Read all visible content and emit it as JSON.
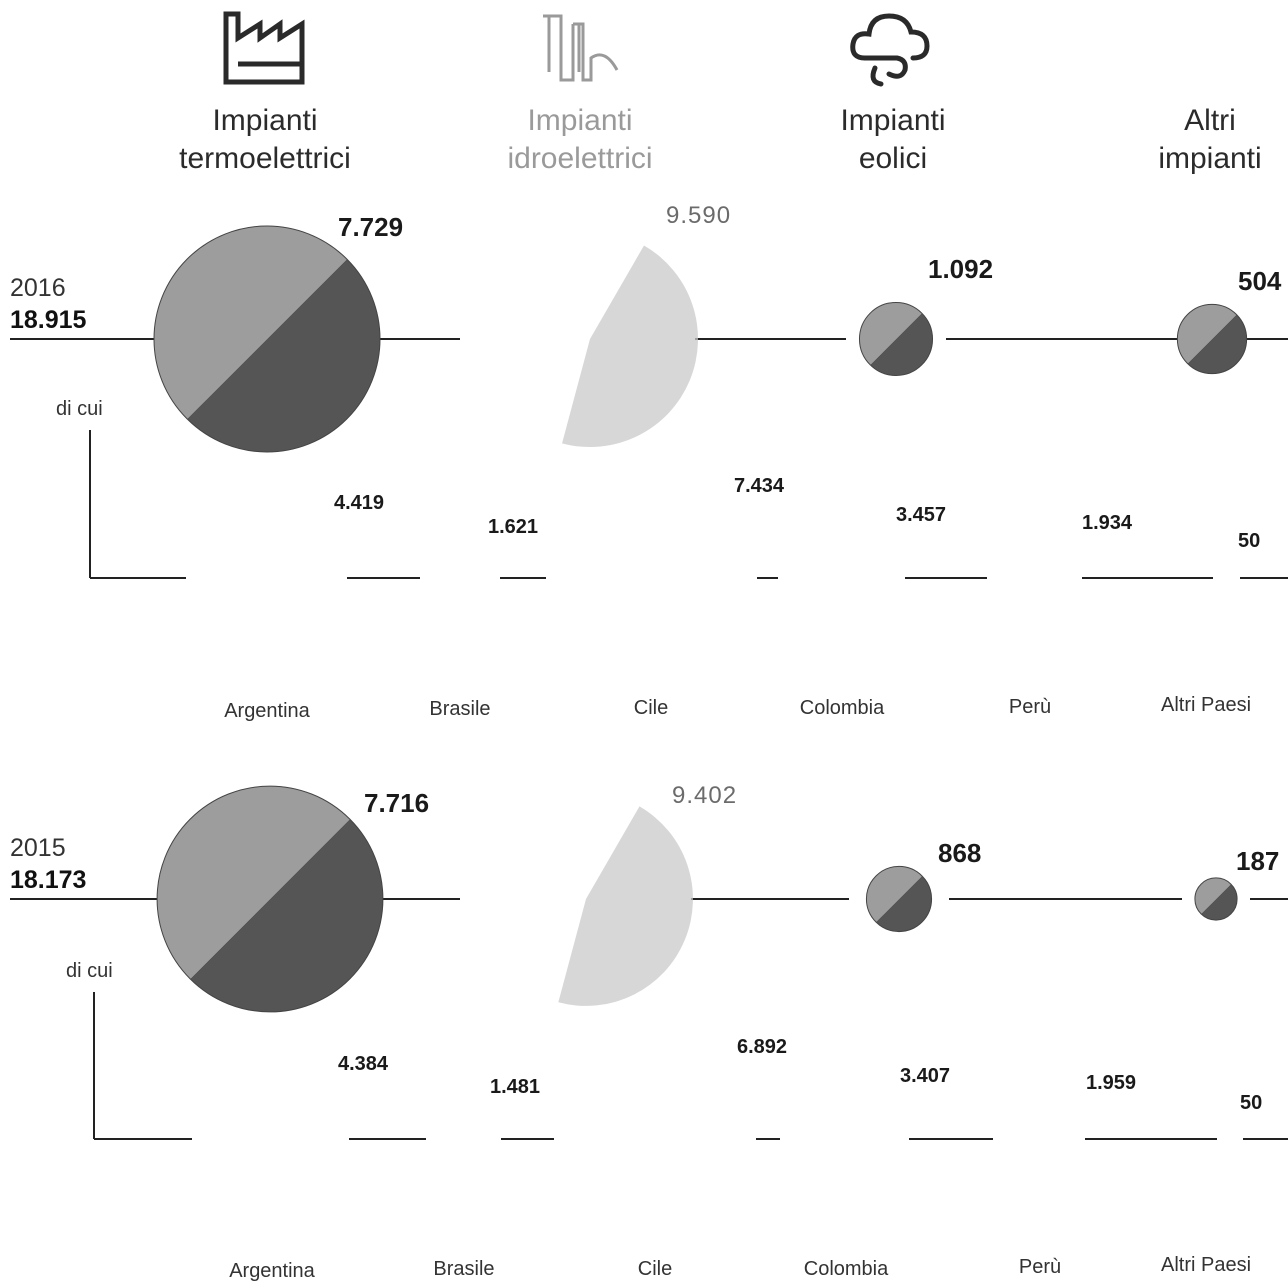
{
  "categories": [
    {
      "key": "termo",
      "label": "Impianti\ntermoelettrici",
      "icon": "factory-icon"
    },
    {
      "key": "idro",
      "label": "Impianti\nidroelettrici",
      "icon": "hydro-pipe-icon"
    },
    {
      "key": "eolici",
      "label": "Impianti\neolici",
      "icon": "wind-cloud-icon"
    },
    {
      "key": "altri",
      "label": "Altri\nimpianti",
      "icon": ""
    }
  ],
  "countries": [
    "Argentina",
    "Brasile",
    "Cile",
    "Colombia",
    "Perù",
    "Altri Paesi"
  ],
  "di_cui_label": "di cui",
  "colors": {
    "termo_light": "#9d9d9d",
    "termo_dark": "#555555",
    "idro": "#c9c9c9",
    "line": "#222222"
  },
  "chart_data": {
    "type": "pie",
    "years": [
      {
        "year": "2016",
        "total": "18.915",
        "by_plant_type": [
          {
            "category": "Impianti termoelettrici",
            "value": 7729,
            "label": "7.729"
          },
          {
            "category": "Impianti idroelettrici",
            "value": 9590,
            "label": "9.590"
          },
          {
            "category": "Impianti eolici",
            "value": 1092,
            "label": "1.092"
          },
          {
            "category": "Altri impianti",
            "value": 504,
            "label": "504"
          }
        ],
        "by_country": [
          {
            "country": "Argentina",
            "value": 4419,
            "label": "4.419"
          },
          {
            "country": "Brasile",
            "value": 1621,
            "label": "1.621"
          },
          {
            "country": "Cile",
            "value": 7434,
            "label": "7.434"
          },
          {
            "country": "Colombia",
            "value": 3457,
            "label": "3.457"
          },
          {
            "country": "Perù",
            "value": 1934,
            "label": "1.934"
          },
          {
            "country": "Altri Paesi",
            "value": 50,
            "label": "50"
          }
        ]
      },
      {
        "year": "2015",
        "total": "18.173",
        "by_plant_type": [
          {
            "category": "Impianti termoelettrici",
            "value": 7716,
            "label": "7.716"
          },
          {
            "category": "Impianti idroelettrici",
            "value": 9402,
            "label": "9.402"
          },
          {
            "category": "Impianti eolici",
            "value": 868,
            "label": "868"
          },
          {
            "category": "Altri impianti",
            "value": 187,
            "label": "187"
          }
        ],
        "by_country": [
          {
            "country": "Argentina",
            "value": 4384,
            "label": "4.384"
          },
          {
            "country": "Brasile",
            "value": 1481,
            "label": "1.481"
          },
          {
            "country": "Cile",
            "value": 6892,
            "label": "6.892"
          },
          {
            "country": "Colombia",
            "value": 3407,
            "label": "3.407"
          },
          {
            "country": "Perù",
            "value": 1959,
            "label": "1.959"
          },
          {
            "country": "Altri Paesi",
            "value": 50,
            "label": "50"
          }
        ]
      }
    ]
  }
}
